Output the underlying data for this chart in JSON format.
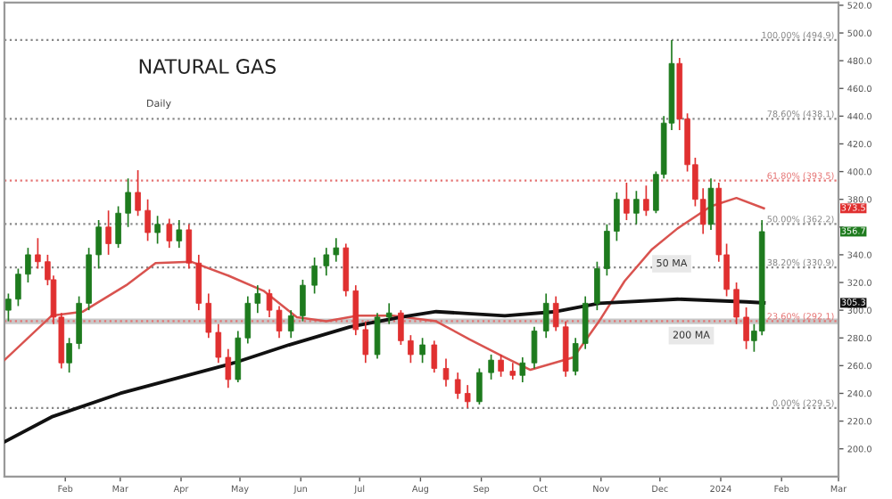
{
  "chart_data": {
    "type": "candlestick",
    "title": "NATURAL GAS",
    "subtitle": "Daily",
    "x": [
      "2023-01-03",
      "2023-01-08",
      "2023-01-13",
      "2023-01-18",
      "2023-01-23",
      "2023-01-26",
      "2023-01-30",
      "2023-02-03",
      "2023-02-08",
      "2023-02-13",
      "2023-02-18",
      "2023-02-23",
      "2023-02-28",
      "2023-03-05",
      "2023-03-10",
      "2023-03-15",
      "2023-03-20",
      "2023-03-26",
      "2023-03-31",
      "2023-04-05",
      "2023-04-10",
      "2023-04-15",
      "2023-04-20",
      "2023-04-25",
      "2023-04-30",
      "2023-05-05",
      "2023-05-10",
      "2023-05-16",
      "2023-05-21",
      "2023-05-27",
      "2023-06-02",
      "2023-06-08",
      "2023-06-14",
      "2023-06-19",
      "2023-06-24",
      "2023-06-29",
      "2023-07-04",
      "2023-07-10",
      "2023-07-16",
      "2023-07-22",
      "2023-07-27",
      "2023-08-02",
      "2023-08-08",
      "2023-08-14",
      "2023-08-20",
      "2023-08-25",
      "2023-08-31",
      "2023-09-06",
      "2023-09-11",
      "2023-09-17",
      "2023-09-22",
      "2023-09-28",
      "2023-10-04",
      "2023-10-09",
      "2023-10-14",
      "2023-10-19",
      "2023-10-24",
      "2023-10-30",
      "2023-11-04",
      "2023-11-09",
      "2023-11-14",
      "2023-11-19",
      "2023-11-24",
      "2023-11-29",
      "2023-12-03",
      "2023-12-07",
      "2023-12-11",
      "2023-12-15",
      "2023-12-19",
      "2023-12-23",
      "2023-12-27",
      "2023-12-31",
      "2024-01-04",
      "2024-01-09",
      "2024-01-14",
      "2024-01-18",
      "2024-01-22"
    ],
    "ohlc": [
      [
        300,
        312,
        292,
        308
      ],
      [
        308,
        330,
        303,
        326
      ],
      [
        326,
        345,
        320,
        340
      ],
      [
        340,
        352,
        330,
        335
      ],
      [
        335,
        340,
        318,
        322
      ],
      [
        322,
        325,
        290,
        295
      ],
      [
        295,
        298,
        258,
        262
      ],
      [
        262,
        280,
        255,
        276
      ],
      [
        276,
        310,
        272,
        305
      ],
      [
        305,
        345,
        300,
        340
      ],
      [
        340,
        365,
        330,
        360
      ],
      [
        360,
        372,
        340,
        348
      ],
      [
        348,
        375,
        345,
        370
      ],
      [
        370,
        395,
        360,
        385
      ],
      [
        385,
        401,
        368,
        372
      ],
      [
        372,
        380,
        350,
        356
      ],
      [
        356,
        368,
        348,
        362
      ],
      [
        362,
        366,
        345,
        350
      ],
      [
        350,
        365,
        345,
        358
      ],
      [
        358,
        362,
        330,
        334
      ],
      [
        334,
        340,
        300,
        305
      ],
      [
        305,
        312,
        280,
        284
      ],
      [
        284,
        290,
        262,
        266
      ],
      [
        266,
        272,
        244,
        250
      ],
      [
        250,
        285,
        248,
        280
      ],
      [
        280,
        310,
        276,
        305
      ],
      [
        305,
        318,
        298,
        312
      ],
      [
        312,
        315,
        295,
        300
      ],
      [
        300,
        303,
        280,
        285
      ],
      [
        285,
        300,
        280,
        296
      ],
      [
        296,
        322,
        292,
        318
      ],
      [
        318,
        338,
        312,
        332
      ],
      [
        332,
        345,
        325,
        340
      ],
      [
        340,
        352,
        335,
        345
      ],
      [
        345,
        348,
        310,
        314
      ],
      [
        314,
        318,
        282,
        286
      ],
      [
        286,
        292,
        262,
        268
      ],
      [
        268,
        298,
        265,
        295
      ],
      [
        295,
        305,
        290,
        298
      ],
      [
        298,
        300,
        275,
        278
      ],
      [
        278,
        282,
        262,
        268
      ],
      [
        268,
        280,
        262,
        275
      ],
      [
        275,
        278,
        255,
        258
      ],
      [
        258,
        265,
        245,
        250
      ],
      [
        250,
        255,
        236,
        240
      ],
      [
        240,
        246,
        229.5,
        234
      ],
      [
        234,
        258,
        232,
        255
      ],
      [
        255,
        268,
        250,
        264
      ],
      [
        264,
        268,
        252,
        256
      ],
      [
        256,
        262,
        250,
        253
      ],
      [
        253,
        266,
        248,
        262
      ],
      [
        262,
        288,
        258,
        285
      ],
      [
        285,
        312,
        280,
        305
      ],
      [
        305,
        310,
        285,
        288
      ],
      [
        288,
        292,
        252,
        256
      ],
      [
        256,
        280,
        253,
        276
      ],
      [
        276,
        310,
        272,
        305
      ],
      [
        305,
        335,
        300,
        330
      ],
      [
        330,
        362,
        325,
        357
      ],
      [
        357,
        385,
        350,
        380
      ],
      [
        380,
        392,
        365,
        370
      ],
      [
        370,
        386,
        362,
        380
      ],
      [
        380,
        390,
        368,
        372
      ],
      [
        372,
        400,
        370,
        398
      ],
      [
        398,
        440,
        395,
        435
      ],
      [
        435,
        494.9,
        430,
        478
      ],
      [
        478,
        482,
        430,
        438
      ],
      [
        438,
        442,
        400,
        405
      ],
      [
        405,
        410,
        375,
        380
      ],
      [
        380,
        388,
        355,
        362
      ],
      [
        362,
        395,
        358,
        388
      ],
      [
        388,
        392,
        335,
        340
      ],
      [
        340,
        348,
        310,
        315
      ],
      [
        315,
        320,
        290,
        295
      ],
      [
        295,
        302,
        272,
        278
      ],
      [
        278,
        290,
        270,
        285
      ],
      [
        285,
        365,
        282,
        356.7
      ]
    ],
    "series": [
      {
        "type": "line",
        "color": "#d9534f",
        "x": [
          "2023-01-01",
          "2023-01-25",
          "2023-02-10",
          "2023-03-04",
          "2023-03-19",
          "2023-04-06",
          "2023-04-25",
          "2023-05-13",
          "2023-05-30",
          "2023-06-14",
          "2023-06-30",
          "2023-07-18",
          "2023-08-09",
          "2023-08-26",
          "2023-09-13",
          "2023-09-26",
          "2023-10-18",
          "2023-10-31",
          "2023-11-13",
          "2023-11-27",
          "2023-12-10",
          "2023-12-27",
          "2024-01-09",
          "2024-01-23"
        ],
        "values": [
          264,
          296,
          299,
          318,
          334,
          335,
          325,
          314,
          295,
          292,
          296,
          296,
          292,
          279,
          266,
          257,
          266,
          292,
          321,
          344,
          359,
          375,
          381,
          373.5
        ]
      },
      {
        "type": "line",
        "color": "#111111",
        "x": [
          "2023-01-01",
          "2023-01-25",
          "2023-03-01",
          "2023-04-28",
          "2023-05-26",
          "2023-06-26",
          "2023-07-22",
          "2023-08-09",
          "2023-09-13",
          "2023-10-09",
          "2023-10-31",
          "2023-12-10",
          "2024-01-14",
          "2024-01-23"
        ],
        "values": [
          205,
          223,
          240,
          262,
          275,
          288,
          295,
          299,
          296,
          299,
          305,
          308,
          306,
          305.3
        ]
      }
    ],
    "ref_lines": [
      {
        "axis": "y",
        "value": 494.9,
        "label": "100.00% (494.9)",
        "color": "#888888",
        "line_style": "dotted"
      },
      {
        "axis": "y",
        "value": 438.1,
        "label": "78.60% (438.1)",
        "color": "#888888",
        "line_style": "dotted"
      },
      {
        "axis": "y",
        "value": 393.5,
        "label": "61.80% (393.5)",
        "color": "#e57373",
        "line_style": "dotted"
      },
      {
        "axis": "y",
        "value": 362.2,
        "label": "50.00% (362.2)",
        "color": "#888888",
        "line_style": "dotted"
      },
      {
        "axis": "y",
        "value": 330.9,
        "label": "38.20% (330.9)",
        "color": "#888888",
        "line_style": "dotted"
      },
      {
        "axis": "y",
        "value": 292.1,
        "label": "23.60% (292.1)",
        "color": "#e57373",
        "line_style": "dotted"
      },
      {
        "axis": "y",
        "value": 229.5,
        "label": "0.00% (229.5)",
        "color": "#888888",
        "line_style": "dotted"
      }
    ],
    "bands": [
      {
        "axis": "y",
        "from": 290,
        "to": 294,
        "color": "#c8c8c8"
      }
    ],
    "annotations": [
      {
        "text": "50 MA",
        "x": "2023-12-07",
        "y": 333.5
      },
      {
        "text": "200 MA",
        "x": "2023-12-17",
        "y": 281.7
      },
      {
        "text": "373.5",
        "y": 373.5
      },
      {
        "text": "356.7",
        "y": 356.7
      },
      {
        "text": "305.3",
        "y": 305.3
      }
    ],
    "xlim": [
      "2023-01-01",
      "2024-03-01"
    ],
    "xticks": [
      {
        "value": "2023-02-01",
        "label": "Feb"
      },
      {
        "value": "2023-03-01",
        "label": "Mar"
      },
      {
        "value": "2023-04-01",
        "label": "Apr"
      },
      {
        "value": "2023-05-01",
        "label": "May"
      },
      {
        "value": "2023-06-01",
        "label": "Jun"
      },
      {
        "value": "2023-07-01",
        "label": "Jul"
      },
      {
        "value": "2023-08-01",
        "label": "Aug"
      },
      {
        "value": "2023-09-01",
        "label": "Sep"
      },
      {
        "value": "2023-10-01",
        "label": "Oct"
      },
      {
        "value": "2023-11-01",
        "label": "Nov"
      },
      {
        "value": "2023-12-01",
        "label": "Dec"
      },
      {
        "value": "2024-01-01",
        "label": "2024"
      },
      {
        "value": "2024-02-01",
        "label": "Feb"
      },
      {
        "value": "2024-03-01",
        "label": "Mar"
      }
    ],
    "ylim": [
      180,
      522
    ],
    "yticks": [
      {
        "value": 200,
        "label": "200.0"
      },
      {
        "value": 220,
        "label": "220.0"
      },
      {
        "value": 240,
        "label": "240.0"
      },
      {
        "value": 260,
        "label": "260.0"
      },
      {
        "value": 280,
        "label": "280.0"
      },
      {
        "value": 300,
        "label": "300.0"
      },
      {
        "value": 320,
        "label": "320.0"
      },
      {
        "value": 340,
        "label": "340.0"
      },
      {
        "value": 360,
        "label": null
      },
      {
        "value": 380,
        "label": "380.0"
      },
      {
        "value": 400,
        "label": "400.0"
      },
      {
        "value": 420,
        "label": "420.0"
      },
      {
        "value": 440,
        "label": "440.0"
      },
      {
        "value": 460,
        "label": "460.0"
      },
      {
        "value": 480,
        "label": "480.0"
      },
      {
        "value": 500,
        "label": "500.0"
      },
      {
        "value": 520,
        "label": "520.0"
      }
    ],
    "grid": false
  }
}
